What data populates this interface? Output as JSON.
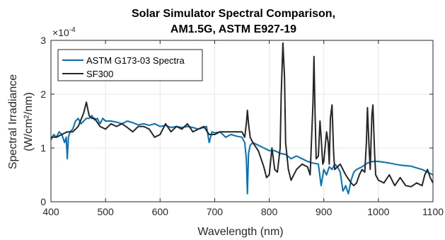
{
  "chart_data": {
    "type": "line",
    "title": [
      "Solar Simulator Spectral Comparison,",
      "AM1.5G, ASTM E927-19"
    ],
    "xlabel": "Wavelength (nm)",
    "ylabel": "Spectral Irradiance",
    "ylabel_units": "(W/cm²/nm)",
    "y_exponent": "×10",
    "y_exponent_power": "-4",
    "xlim": [
      400,
      1100
    ],
    "ylim": [
      0,
      3
    ],
    "xticks": [
      400,
      500,
      600,
      700,
      800,
      900,
      1000,
      1100
    ],
    "yticks": [
      0,
      1,
      2,
      3
    ],
    "grid": true,
    "legend_position": "top-left",
    "series": [
      {
        "name": "ASTM G173-03 Spectra",
        "color": "#0072bd",
        "x": [
          400,
          405,
          410,
          415,
          420,
          425,
          428,
          430,
          432,
          435,
          440,
          445,
          450,
          455,
          460,
          465,
          470,
          475,
          480,
          485,
          490,
          495,
          500,
          505,
          510,
          520,
          530,
          540,
          550,
          560,
          570,
          580,
          590,
          600,
          610,
          620,
          630,
          640,
          650,
          660,
          670,
          680,
          685,
          690,
          695,
          700,
          710,
          720,
          730,
          740,
          750,
          755,
          758,
          760,
          762,
          765,
          770,
          780,
          790,
          800,
          810,
          820,
          830,
          840,
          850,
          860,
          870,
          880,
          890,
          895,
          900,
          905,
          910,
          915,
          920,
          925,
          930,
          935,
          938,
          940,
          945,
          950,
          955,
          960,
          970,
          980,
          990,
          1000,
          1020,
          1040,
          1060,
          1080,
          1100
        ],
        "y": [
          1.15,
          1.25,
          1.2,
          1.3,
          1.25,
          1.1,
          1.2,
          0.8,
          1.2,
          1.3,
          1.35,
          1.5,
          1.55,
          1.45,
          1.5,
          1.55,
          1.55,
          1.6,
          1.52,
          1.55,
          1.45,
          1.55,
          1.5,
          1.5,
          1.5,
          1.48,
          1.45,
          1.5,
          1.47,
          1.43,
          1.45,
          1.42,
          1.45,
          1.4,
          1.42,
          1.38,
          1.4,
          1.38,
          1.4,
          1.38,
          1.35,
          1.38,
          1.4,
          1.1,
          1.3,
          1.28,
          1.3,
          1.2,
          1.25,
          1.22,
          1.2,
          1.1,
          0.8,
          0.15,
          0.9,
          1.05,
          1.1,
          1.05,
          1.0,
          0.95,
          0.95,
          0.9,
          0.88,
          0.8,
          0.85,
          0.8,
          0.75,
          0.72,
          0.7,
          0.3,
          0.6,
          0.5,
          0.65,
          0.6,
          0.7,
          0.65,
          0.55,
          0.2,
          0.25,
          0.3,
          0.15,
          0.4,
          0.55,
          0.6,
          0.65,
          0.72,
          0.75,
          0.75,
          0.72,
          0.68,
          0.66,
          0.6,
          0.5
        ]
      },
      {
        "name": "SF300",
        "color": "#262626",
        "x": [
          400,
          410,
          420,
          430,
          440,
          450,
          460,
          465,
          470,
          475,
          480,
          490,
          500,
          510,
          520,
          530,
          540,
          550,
          560,
          570,
          580,
          590,
          600,
          610,
          620,
          630,
          640,
          650,
          660,
          670,
          680,
          690,
          700,
          710,
          720,
          730,
          740,
          750,
          755,
          758,
          760,
          762,
          765,
          770,
          780,
          790,
          795,
          800,
          805,
          810,
          815,
          820,
          822,
          825,
          828,
          830,
          835,
          840,
          850,
          860,
          870,
          875,
          880,
          882,
          884,
          886,
          890,
          893,
          895,
          898,
          900,
          905,
          908,
          910,
          912,
          915,
          918,
          920,
          925,
          930,
          940,
          950,
          955,
          960,
          965,
          970,
          975,
          978,
          980,
          983,
          985,
          988,
          990,
          993,
          995,
          1000,
          1010,
          1020,
          1030,
          1040,
          1050,
          1060,
          1070,
          1080,
          1085,
          1090,
          1095,
          1100
        ],
        "y": [
          1.2,
          1.2,
          1.25,
          1.3,
          1.3,
          1.4,
          1.65,
          1.85,
          1.6,
          1.55,
          1.55,
          1.4,
          1.35,
          1.45,
          1.4,
          1.45,
          1.38,
          1.3,
          1.4,
          1.4,
          1.35,
          1.2,
          1.25,
          1.45,
          1.3,
          1.4,
          1.35,
          1.45,
          1.3,
          1.35,
          1.4,
          1.25,
          1.25,
          1.3,
          1.3,
          1.3,
          1.3,
          1.3,
          1.2,
          1.45,
          1.7,
          1.45,
          1.2,
          1.1,
          0.95,
          0.65,
          0.45,
          0.5,
          1.0,
          0.6,
          0.55,
          1.0,
          2.0,
          2.95,
          2.3,
          1.1,
          0.6,
          0.4,
          0.6,
          0.7,
          0.65,
          0.5,
          1.8,
          2.7,
          1.6,
          0.8,
          0.85,
          1.5,
          1.2,
          0.7,
          0.75,
          1.3,
          1.1,
          0.7,
          1.55,
          1.8,
          0.9,
          0.6,
          0.65,
          0.7,
          0.5,
          0.35,
          0.3,
          0.35,
          0.5,
          0.6,
          0.55,
          1.1,
          1.75,
          1.0,
          0.6,
          1.6,
          1.8,
          0.9,
          0.5,
          0.4,
          0.35,
          0.5,
          0.3,
          0.45,
          0.3,
          0.28,
          0.35,
          0.3,
          0.5,
          0.6,
          0.45,
          0.35
        ]
      }
    ]
  }
}
